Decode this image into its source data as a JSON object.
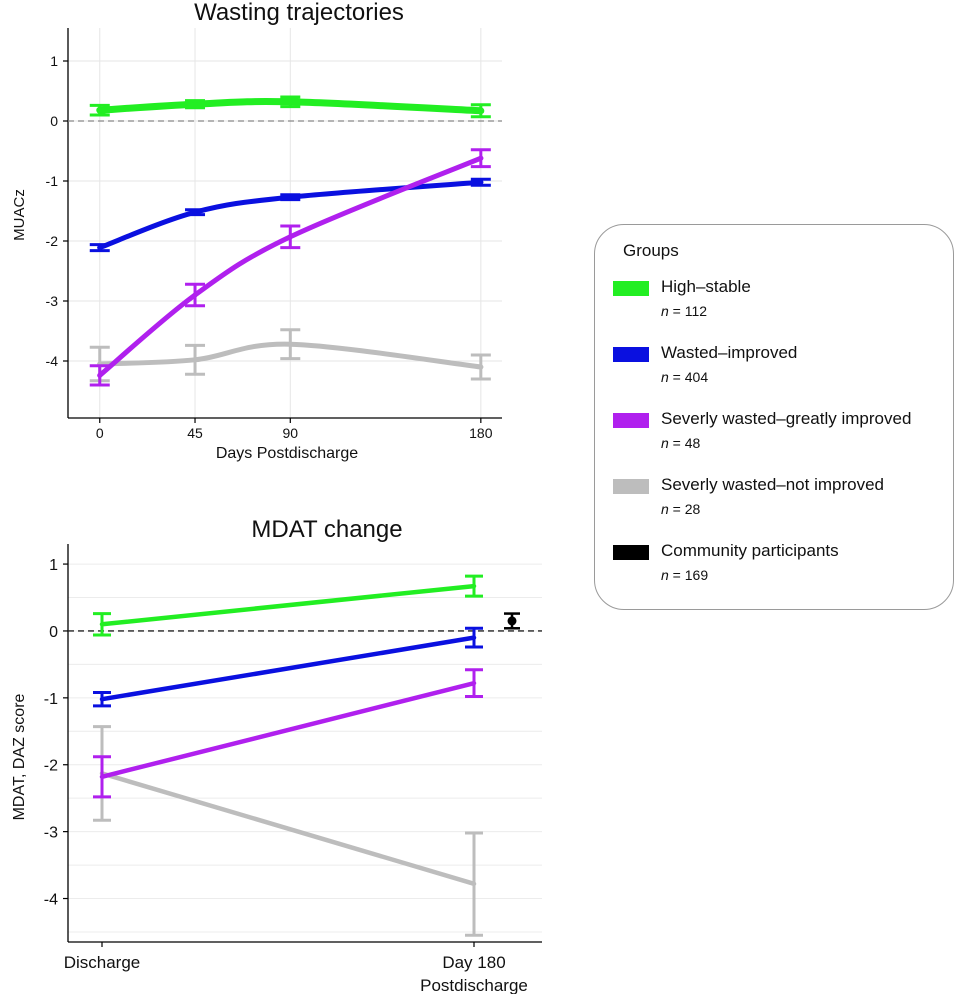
{
  "legend": {
    "title": "Groups",
    "items": [
      {
        "label": "High–stable",
        "n": "112",
        "color": "#22ee22"
      },
      {
        "label": "Wasted–improved",
        "n": "404",
        "color": "#0a10e0"
      },
      {
        "label": "Severly wasted–greatly improved",
        "n": "48",
        "color": "#b020ee"
      },
      {
        "label": "Severly wasted–not improved",
        "n": "28",
        "color": "#bdbdbd"
      },
      {
        "label": "Community participants",
        "n": "169",
        "color": "#000000"
      }
    ],
    "n_prefix": "n"
  },
  "chart_data": [
    {
      "type": "line",
      "title": "Wasting trajectories",
      "xlabel": "Days Postdischarge",
      "ylabel": "MUACz",
      "x": [
        0,
        45,
        90,
        180
      ],
      "xticks": [
        "0",
        "45",
        "90",
        "180"
      ],
      "xlim": [
        -15,
        190
      ],
      "ylim": [
        -4.95,
        1.55
      ],
      "yticks": [
        1,
        0,
        -1,
        -2,
        -3,
        -4
      ],
      "ytick_labels": [
        "1",
        "0",
        "-1",
        "-2",
        "-3",
        "-4"
      ],
      "reference_line": 0,
      "grid": true,
      "series": [
        {
          "name": "High–stable",
          "color": "#22ee22",
          "values": [
            0.18,
            0.28,
            0.32,
            0.17
          ],
          "error": [
            [
              0.1,
              0.26
            ],
            [
              0.22,
              0.34
            ],
            [
              0.24,
              0.4
            ],
            [
              0.07,
              0.27
            ]
          ]
        },
        {
          "name": "Wasted–improved",
          "color": "#0a10e0",
          "values": [
            -2.11,
            -1.52,
            -1.27,
            -1.02
          ],
          "error": [
            [
              -2.16,
              -2.06
            ],
            [
              -1.56,
              -1.48
            ],
            [
              -1.31,
              -1.23
            ],
            [
              -1.07,
              -0.97
            ]
          ]
        },
        {
          "name": "Severly wasted–greatly improved",
          "color": "#b020ee",
          "values": [
            -4.24,
            -2.9,
            -1.93,
            -0.62
          ],
          "error": [
            [
              -4.4,
              -4.08
            ],
            [
              -3.08,
              -2.72
            ],
            [
              -2.11,
              -1.75
            ],
            [
              -0.76,
              -0.48
            ]
          ]
        },
        {
          "name": "Severly wasted–not improved",
          "color": "#bdbdbd",
          "values": [
            -4.05,
            -3.98,
            -3.72,
            -4.1
          ],
          "error": [
            [
              -4.33,
              -3.77
            ],
            [
              -4.22,
              -3.74
            ],
            [
              -3.96,
              -3.48
            ],
            [
              -4.3,
              -3.9
            ]
          ]
        }
      ]
    },
    {
      "type": "line",
      "title": "MDAT change",
      "xlabel": "",
      "ylabel": "MDAT, DAZ score",
      "categories": [
        "Discharge",
        "Day 180 Postdischarge"
      ],
      "category_lines": [
        [
          "Discharge"
        ],
        [
          "Day 180",
          "Postdischarge"
        ]
      ],
      "ylim": [
        -4.65,
        1.3
      ],
      "yticks": [
        1,
        0,
        -1,
        -2,
        -3,
        -4
      ],
      "ytick_labels": [
        "1",
        "0",
        "-1",
        "-2",
        "-3",
        "-4"
      ],
      "reference_line": 0,
      "grid": true,
      "series": [
        {
          "name": "High–stable",
          "color": "#22ee22",
          "values": [
            0.1,
            0.67
          ],
          "error": [
            [
              -0.06,
              0.26
            ],
            [
              0.52,
              0.82
            ]
          ]
        },
        {
          "name": "Wasted–improved",
          "color": "#0a10e0",
          "values": [
            -1.02,
            -0.1
          ],
          "error": [
            [
              -1.12,
              -0.92
            ],
            [
              -0.24,
              0.04
            ]
          ]
        },
        {
          "name": "Severly wasted–greatly improved",
          "color": "#b020ee",
          "values": [
            -2.18,
            -0.78
          ],
          "error": [
            [
              -2.48,
              -1.88
            ],
            [
              -0.98,
              -0.58
            ]
          ]
        },
        {
          "name": "Severly wasted–not improved",
          "color": "#bdbdbd",
          "values": [
            -2.13,
            -3.78
          ],
          "error": [
            [
              -2.83,
              -1.43
            ],
            [
              -4.55,
              -3.02
            ]
          ]
        }
      ],
      "community": {
        "name": "Community participants",
        "color": "#000000",
        "value": 0.15,
        "error": [
          0.04,
          0.26
        ]
      }
    }
  ]
}
